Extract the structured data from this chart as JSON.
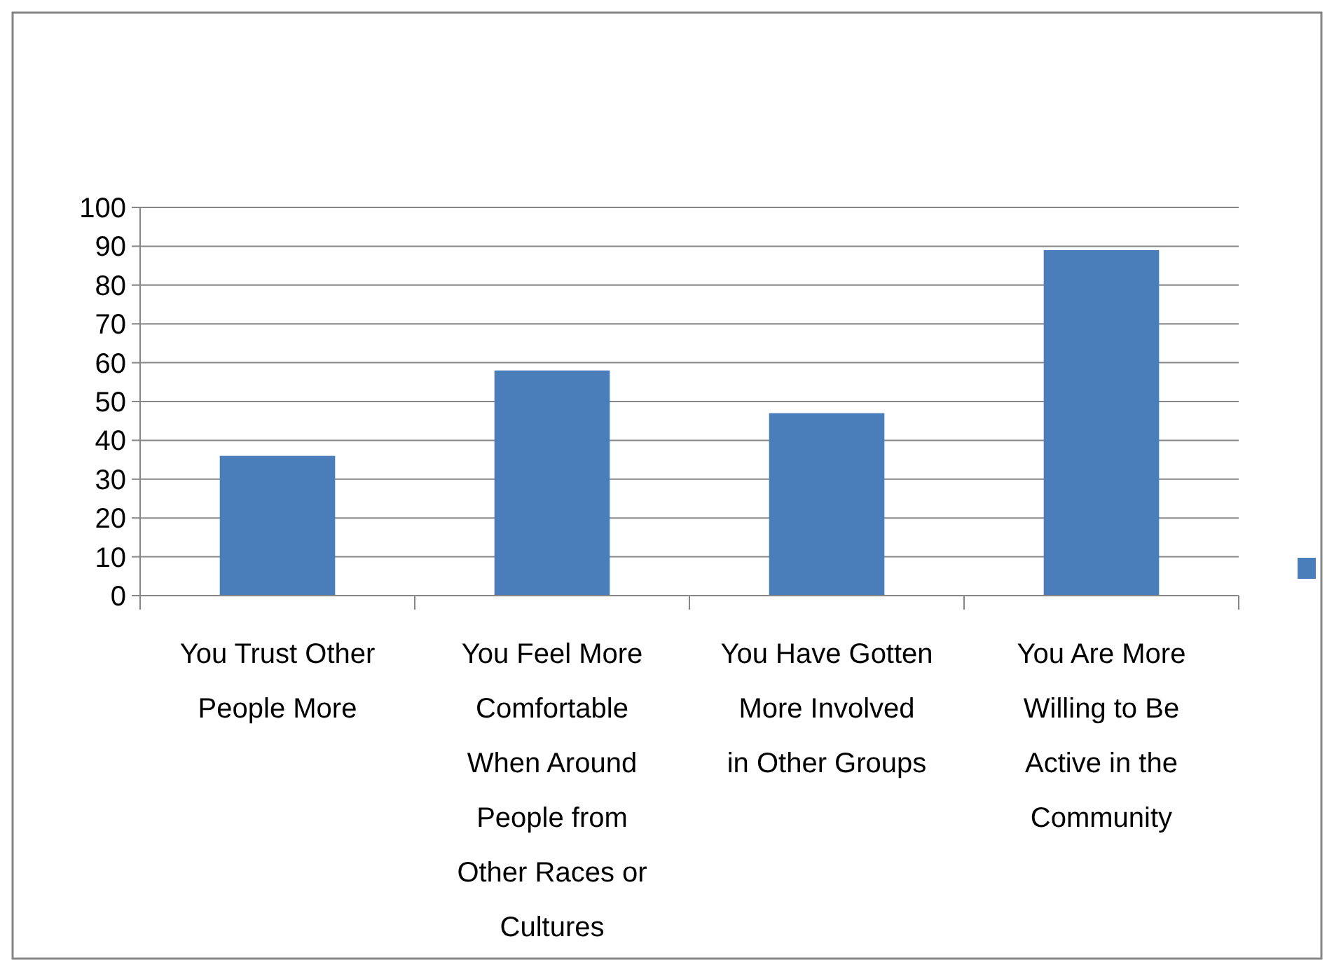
{
  "chart_data": {
    "type": "bar",
    "categories": [
      "You Trust Other People More",
      "You Feel More Comfortable When Around People from Other Races or Cultures",
      "You Have Gotten More Involved in Other Groups",
      "You Are More Willing to Be Active in the Community"
    ],
    "series": [
      {
        "color": "#4a7ebb",
        "values": [
          36,
          58,
          47,
          89
        ]
      }
    ],
    "ylim": [
      0,
      100
    ],
    "yticks": [
      0,
      10,
      20,
      30,
      40,
      50,
      60,
      70,
      80,
      90,
      100
    ],
    "grid": "y"
  }
}
